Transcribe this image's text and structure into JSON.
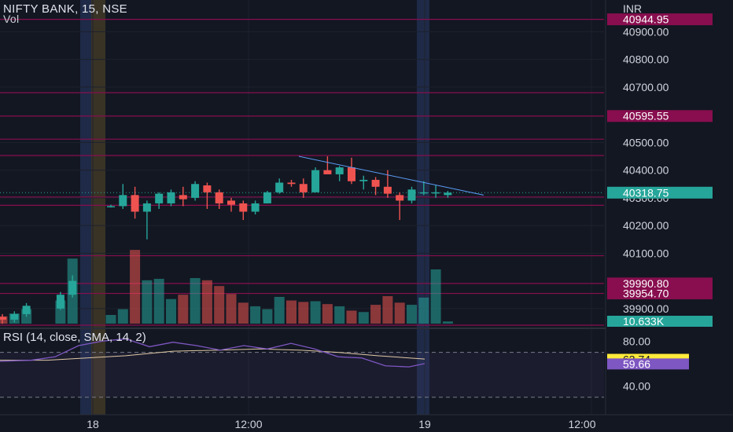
{
  "header": {
    "title": "NIFTY BANK, 15, NSE",
    "vol_label": "Vol"
  },
  "price_axis": {
    "currency": "INR",
    "ticks": [
      "40900.00",
      "40800.00",
      "40700.00",
      "40500.00",
      "40400.00",
      "40300.00",
      "40200.00",
      "40100.00",
      "39900.00"
    ]
  },
  "price_labels": [
    {
      "text": "40944.95",
      "value": 40944.95,
      "bg": "#880e4f",
      "fg": "#ffffff"
    },
    {
      "text": "40595.55",
      "value": 40595.55,
      "bg": "#880e4f",
      "fg": "#ffffff"
    },
    {
      "text": "40318.75",
      "value": 40318.75,
      "bg": "#26a69a",
      "fg": "#ffffff"
    },
    {
      "text": "39990.80",
      "value": 39990.8,
      "bg": "#880e4f",
      "fg": "#ffffff"
    },
    {
      "text": "39954.70",
      "value": 39954.7,
      "bg": "#880e4f",
      "fg": "#ffffff"
    }
  ],
  "volume_label": {
    "text": "10.633K",
    "bg": "#26a69a",
    "fg": "#ffffff"
  },
  "rsi": {
    "title": "RSI (14, close, SMA, 14, 2)",
    "ticks": [
      "80.00",
      "40.00"
    ],
    "value_label": {
      "text": "63.74",
      "bg": "#ffeb3b",
      "fg": "#131722"
    },
    "sma_label": {
      "text": "59.66",
      "bg": "#7e57c2",
      "fg": "#ffffff"
    }
  },
  "time_axis": {
    "labels": [
      "18",
      "12:00",
      "19",
      "12:00"
    ]
  },
  "colors": {
    "background": "#131722",
    "up": "#26a69a",
    "down": "#ef5350",
    "level_line": "#880e4f",
    "rsi_line": "#7e57c2",
    "rsi_ma": "#ffeb3b",
    "grid": "#1e222d"
  },
  "chart_data": {
    "type": "candlestick",
    "symbol": "NIFTY BANK",
    "interval": "15",
    "exchange": "NSE",
    "ylim": [
      39840,
      40975
    ],
    "levels": [
      40944.95,
      40680,
      40595.55,
      40512,
      40453,
      40303,
      40273,
      40091,
      39990.8,
      39954.7,
      39840
    ],
    "trendline": {
      "from": 40450,
      "to": 40310
    },
    "candles": [
      {
        "o": 40270,
        "h": 40275,
        "l": 40265,
        "c": 40270,
        "v": 1.2
      },
      {
        "o": 40270,
        "h": 40350,
        "l": 40260,
        "c": 40310,
        "v": 2.0
      },
      {
        "o": 40310,
        "h": 40340,
        "l": 40225,
        "c": 40250,
        "v": 10.2
      },
      {
        "o": 40250,
        "h": 40290,
        "l": 40150,
        "c": 40280,
        "v": 6.0
      },
      {
        "o": 40280,
        "h": 40320,
        "l": 40260,
        "c": 40315,
        "v": 6.2
      },
      {
        "o": 40280,
        "h": 40330,
        "l": 40270,
        "c": 40320,
        "v": 3.4
      },
      {
        "o": 40310,
        "h": 40340,
        "l": 40270,
        "c": 40295,
        "v": 4.0
      },
      {
        "o": 40300,
        "h": 40360,
        "l": 40290,
        "c": 40350,
        "v": 6.3
      },
      {
        "o": 40345,
        "h": 40355,
        "l": 40260,
        "c": 40320,
        "v": 6.0
      },
      {
        "o": 40320,
        "h": 40330,
        "l": 40260,
        "c": 40280,
        "v": 5.2
      },
      {
        "o": 40290,
        "h": 40300,
        "l": 40250,
        "c": 40275,
        "v": 4.1
      },
      {
        "o": 40280,
        "h": 40290,
        "l": 40220,
        "c": 40250,
        "v": 2.9
      },
      {
        "o": 40250,
        "h": 40290,
        "l": 40240,
        "c": 40280,
        "v": 2.4
      },
      {
        "o": 40280,
        "h": 40325,
        "l": 40280,
        "c": 40320,
        "v": 2.0
      },
      {
        "o": 40320,
        "h": 40370,
        "l": 40315,
        "c": 40355,
        "v": 3.7
      },
      {
        "o": 40355,
        "h": 40365,
        "l": 40340,
        "c": 40350,
        "v": 3.2
      },
      {
        "o": 40350,
        "h": 40370,
        "l": 40300,
        "c": 40320,
        "v": 3.0
      },
      {
        "o": 40320,
        "h": 40410,
        "l": 40320,
        "c": 40400,
        "v": 3.1
      },
      {
        "o": 40400,
        "h": 40450,
        "l": 40390,
        "c": 40385,
        "v": 2.7
      },
      {
        "o": 40385,
        "h": 40415,
        "l": 40360,
        "c": 40410,
        "v": 2.4
      },
      {
        "o": 40410,
        "h": 40445,
        "l": 40350,
        "c": 40360,
        "v": 1.8
      },
      {
        "o": 40360,
        "h": 40380,
        "l": 40330,
        "c": 40365,
        "v": 1.6
      },
      {
        "o": 40365,
        "h": 40375,
        "l": 40310,
        "c": 40340,
        "v": 2.6
      },
      {
        "o": 40340,
        "h": 40400,
        "l": 40300,
        "c": 40315,
        "v": 3.8
      },
      {
        "o": 40310,
        "h": 40320,
        "l": 40220,
        "c": 40290,
        "v": 2.9
      },
      {
        "o": 40290,
        "h": 40340,
        "l": 40280,
        "c": 40330,
        "v": 2.6
      },
      {
        "o": 40320,
        "h": 40360,
        "l": 40310,
        "c": 40320,
        "v": 3.6
      },
      {
        "o": 40320,
        "h": 40345,
        "l": 40300,
        "c": 40320,
        "v": 7.5
      },
      {
        "o": 40310,
        "h": 40325,
        "l": 40300,
        "c": 40318.75,
        "v": 0.3
      }
    ],
    "left_candles": [
      {
        "o": 39870,
        "h": 39880,
        "l": 39845,
        "c": 39860,
        "v": 1.0
      },
      {
        "o": 39860,
        "h": 39890,
        "l": 39850,
        "c": 39880,
        "v": 1.4
      },
      {
        "o": 39880,
        "h": 39920,
        "l": 39870,
        "c": 39910,
        "v": 2.0
      },
      {
        "o": 39900,
        "h": 39960,
        "l": 39895,
        "c": 39950,
        "v": 3.2
      },
      {
        "o": 39950,
        "h": 40020,
        "l": 39940,
        "c": 40000,
        "v": 9.0
      }
    ],
    "rsi": {
      "ylim": [
        20,
        90
      ],
      "value": 63.74,
      "sma": 59.66
    }
  }
}
